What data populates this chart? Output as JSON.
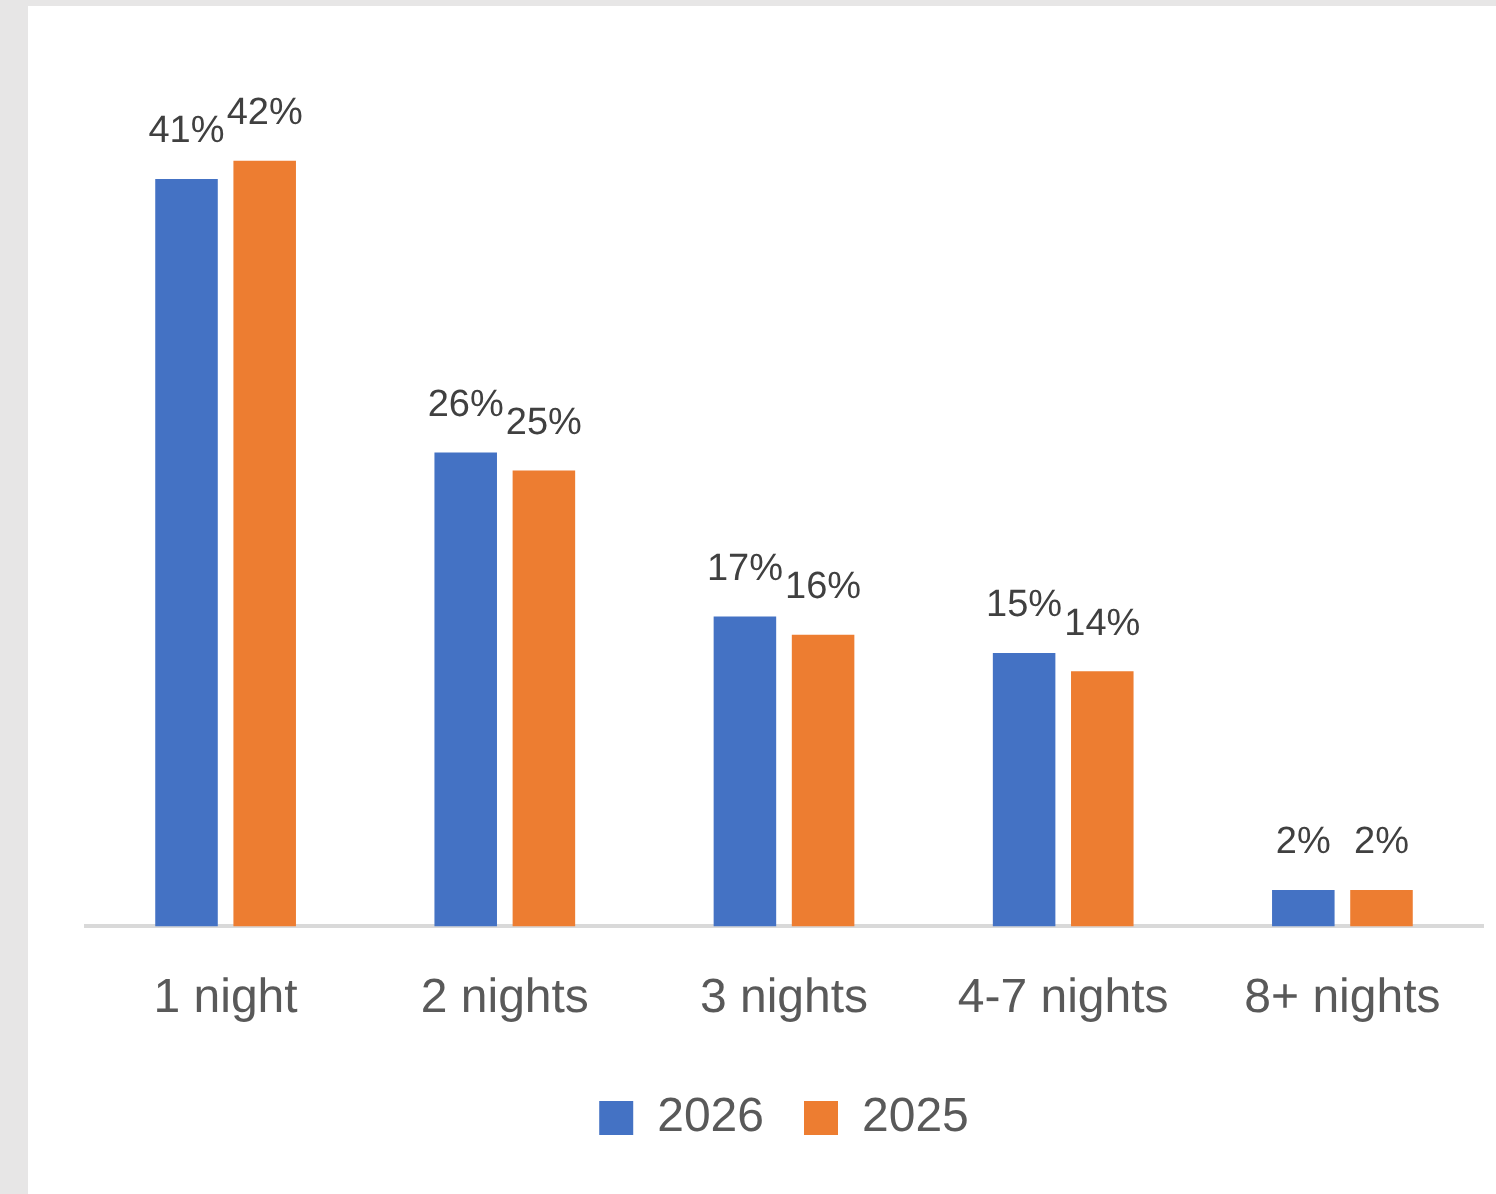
{
  "chart_data": {
    "type": "bar",
    "categories": [
      "1 night",
      "2 nights",
      "3 nights",
      "4-7 nights",
      "8+ nights"
    ],
    "series": [
      {
        "name": "2026",
        "color": "#4472c4",
        "values": [
          41,
          26,
          17,
          15,
          2
        ],
        "value_labels": [
          "41%",
          "26%",
          "17%",
          "15%",
          "2%"
        ]
      },
      {
        "name": "2025",
        "color": "#ed7d31",
        "values": [
          42,
          25,
          16,
          14,
          2
        ],
        "value_labels": [
          "42%",
          "25%",
          "16%",
          "14%",
          "2%"
        ]
      }
    ],
    "legend": "bottom"
  }
}
